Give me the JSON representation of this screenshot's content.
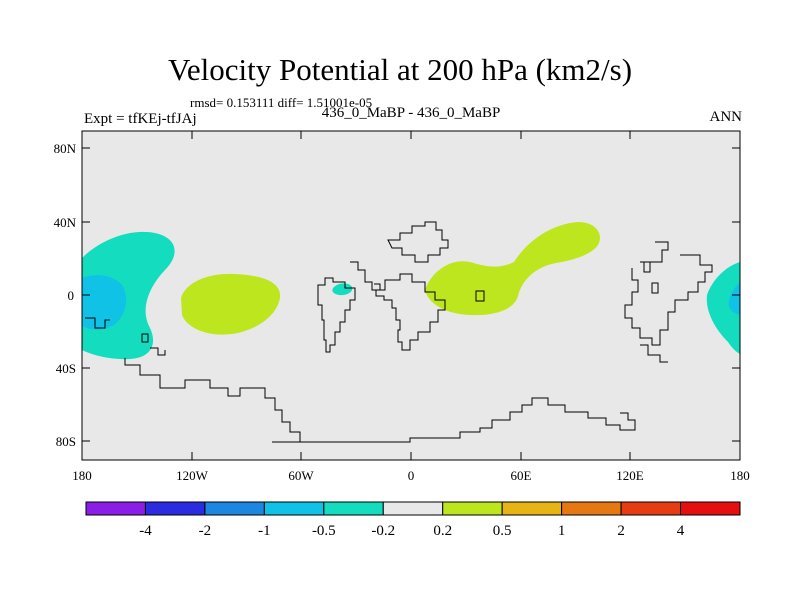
{
  "title": "Velocity Potential at 200 hPa (km2/s)",
  "stats": "rmsd= 0.153111 diff= 1.51001e-05",
  "left_label": "Expt = tfKEj-tfJAj",
  "center_label": "436_0_MaBP - 436_0_MaBP",
  "right_label": "ANN",
  "map": {
    "lat_ticks": [
      "80N",
      "40N",
      "0",
      "40S",
      "80S"
    ],
    "lon_ticks": [
      "180",
      "120W",
      "60W",
      "0",
      "60E",
      "120E",
      "180"
    ]
  },
  "colorbar": {
    "labels": [
      "-4",
      "-2",
      "-1",
      "-0.5",
      "-0.2",
      "0.2",
      "0.5",
      "1",
      "2",
      "4"
    ],
    "colors": [
      "#8a1ee6",
      "#2b2be0",
      "#1c86e0",
      "#0fc2e6",
      "#14dcbe",
      "#e8e8e8",
      "#bde61e",
      "#e6b414",
      "#e67814",
      "#e63c14",
      "#e60f0f"
    ]
  },
  "colors": {
    "neutral": "#e8e8e8",
    "negative_light": "#14dcbe",
    "negative_mid": "#0fc2e6",
    "positive_light": "#bde61e"
  }
}
